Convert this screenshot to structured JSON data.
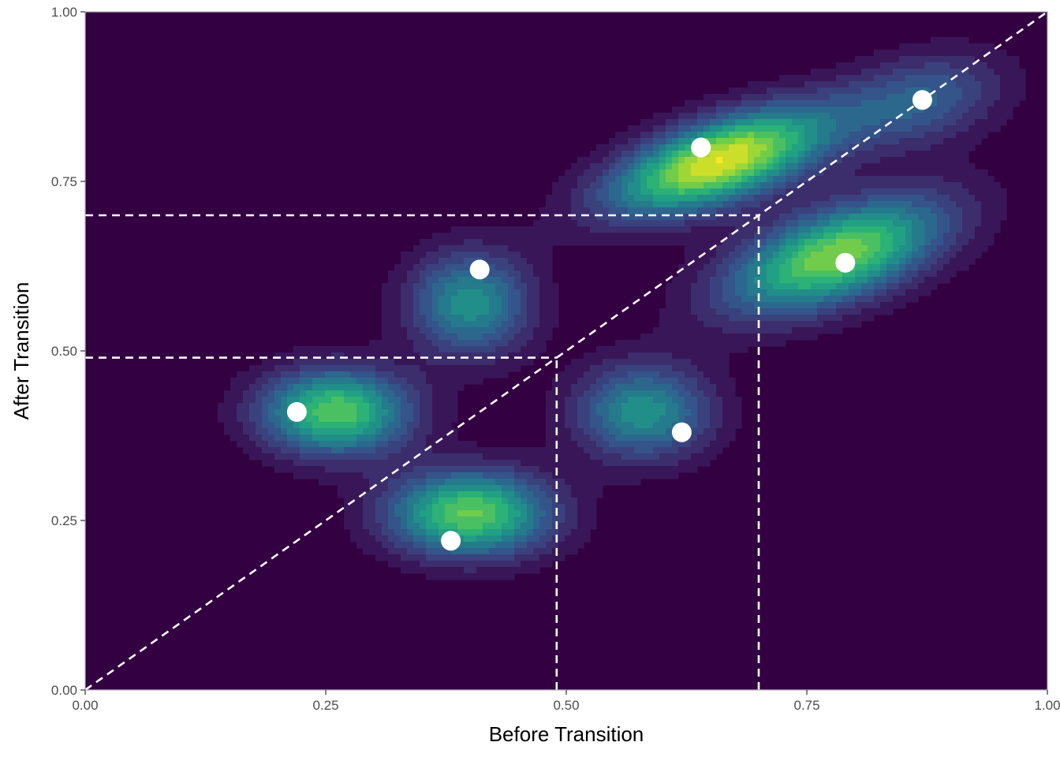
{
  "chart_data": {
    "type": "heatmap",
    "subtype": "2d-density-contour-with-points",
    "xlabel": "Before Transition",
    "ylabel": "After Transition",
    "xlim": [
      0,
      1
    ],
    "ylim": [
      0,
      1
    ],
    "x_ticks": [
      "0.00",
      "0.25",
      "0.50",
      "0.75",
      "1.00"
    ],
    "y_ticks": [
      "0.00",
      "0.25",
      "0.50",
      "0.75",
      "1.00"
    ],
    "x_tick_values": [
      0,
      0.25,
      0.5,
      0.75,
      1.0
    ],
    "y_tick_values": [
      0,
      0.25,
      0.5,
      0.75,
      1.0
    ],
    "grid": false,
    "colormap": "viridis",
    "colors": {
      "background_low": "#330042",
      "high": "#FDE725",
      "points": "#ffffff",
      "reference_lines": "#ffffff"
    },
    "points": [
      {
        "x": 0.22,
        "y": 0.41
      },
      {
        "x": 0.38,
        "y": 0.22
      },
      {
        "x": 0.41,
        "y": 0.62
      },
      {
        "x": 0.62,
        "y": 0.38
      },
      {
        "x": 0.64,
        "y": 0.8
      },
      {
        "x": 0.79,
        "y": 0.63
      },
      {
        "x": 0.87,
        "y": 0.87
      }
    ],
    "density_peaks": [
      {
        "x": 0.26,
        "y": 0.41,
        "weight": 0.78,
        "sx": 0.055,
        "sy": 0.045,
        "rho": 0.0
      },
      {
        "x": 0.4,
        "y": 0.26,
        "weight": 0.8,
        "sx": 0.06,
        "sy": 0.045,
        "rho": 0.0
      },
      {
        "x": 0.4,
        "y": 0.57,
        "weight": 0.55,
        "sx": 0.045,
        "sy": 0.055,
        "rho": 0.0
      },
      {
        "x": 0.58,
        "y": 0.41,
        "weight": 0.55,
        "sx": 0.05,
        "sy": 0.05,
        "rho": 0.0
      },
      {
        "x": 0.66,
        "y": 0.78,
        "weight": 1.0,
        "sx": 0.08,
        "sy": 0.055,
        "rho": 0.6
      },
      {
        "x": 0.78,
        "y": 0.64,
        "weight": 0.85,
        "sx": 0.08,
        "sy": 0.06,
        "rho": 0.55
      },
      {
        "x": 0.87,
        "y": 0.87,
        "weight": 0.35,
        "sx": 0.06,
        "sy": 0.05,
        "rho": 0.3
      }
    ],
    "reference_lines": [
      {
        "kind": "diagonal",
        "from": [
          0,
          0
        ],
        "to": [
          1,
          1
        ]
      },
      {
        "kind": "segment",
        "from": [
          0,
          0.49
        ],
        "to": [
          0.49,
          0.49
        ]
      },
      {
        "kind": "segment",
        "from": [
          0.49,
          0
        ],
        "to": [
          0.49,
          0.49
        ]
      },
      {
        "kind": "segment",
        "from": [
          0,
          0.7
        ],
        "to": [
          0.7,
          0.7
        ]
      },
      {
        "kind": "segment",
        "from": [
          0.7,
          0
        ],
        "to": [
          0.7,
          0.7
        ]
      }
    ]
  }
}
